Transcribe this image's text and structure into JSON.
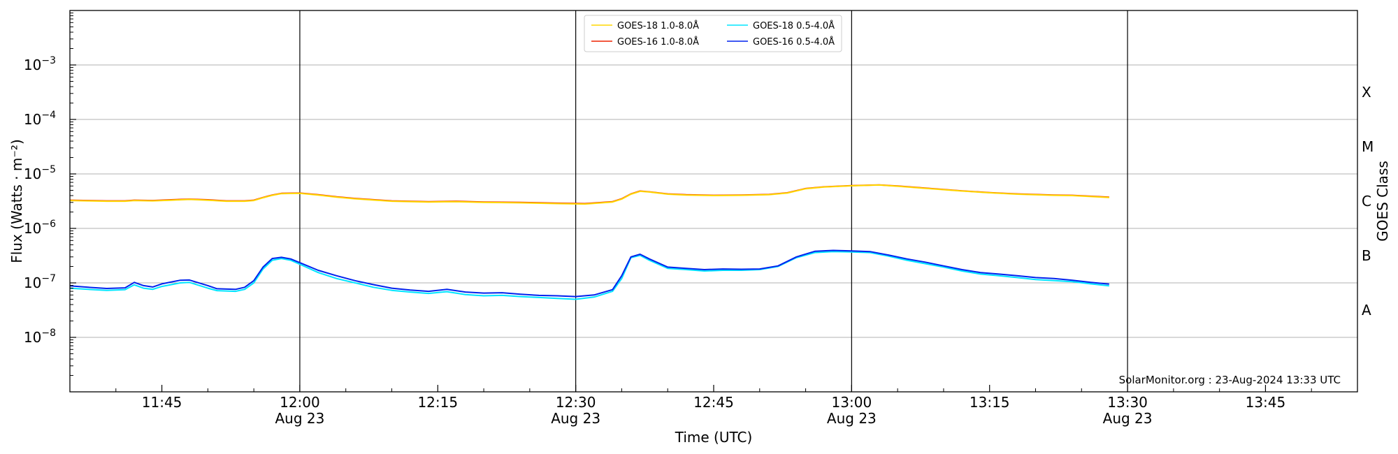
{
  "chart_data": {
    "type": "line",
    "title": "",
    "xlabel": "Time (UTC)",
    "ylabel": "Flux (Watts · m⁻²)",
    "right_label": "GOES Class",
    "y_scale": "log",
    "xlim": [
      "11:35",
      "13:55"
    ],
    "ylim_exponent": [
      -9,
      -2
    ],
    "grid": "horizontal",
    "x_ticks": [
      {
        "time": "11:45",
        "label": "11:45",
        "sub": ""
      },
      {
        "time": "12:00",
        "label": "12:00",
        "sub": "Aug 23"
      },
      {
        "time": "12:15",
        "label": "12:15",
        "sub": ""
      },
      {
        "time": "12:30",
        "label": "12:30",
        "sub": "Aug 23"
      },
      {
        "time": "12:45",
        "label": "12:45",
        "sub": ""
      },
      {
        "time": "13:00",
        "label": "13:00",
        "sub": "Aug 23"
      },
      {
        "time": "13:15",
        "label": "13:15",
        "sub": ""
      },
      {
        "time": "13:30",
        "label": "13:30",
        "sub": "Aug 23"
      },
      {
        "time": "13:45",
        "label": "13:45",
        "sub": ""
      }
    ],
    "day_lines": [
      "12:00",
      "12:30",
      "13:00",
      "13:30"
    ],
    "y_ticks": [
      {
        "exp": -8,
        "label": "10",
        "sup": "−8"
      },
      {
        "exp": -7,
        "label": "10",
        "sup": "−7"
      },
      {
        "exp": -6,
        "label": "10",
        "sup": "−6"
      },
      {
        "exp": -5,
        "label": "10",
        "sup": "−5"
      },
      {
        "exp": -4,
        "label": "10",
        "sup": "−4"
      },
      {
        "exp": -3,
        "label": "10",
        "sup": "−3"
      }
    ],
    "class_labels": [
      {
        "label": "A",
        "exp": -7.5
      },
      {
        "label": "B",
        "exp": -6.5
      },
      {
        "label": "C",
        "exp": -5.5
      },
      {
        "label": "M",
        "exp": -4.5
      },
      {
        "label": "X",
        "exp": -3.5
      }
    ],
    "legend": {
      "placement": "top-center",
      "entries": [
        {
          "name": "GOES-18 1.0-8.0Å",
          "color": "#ffd700"
        },
        {
          "name": "GOES-18 0.5-4.0Å",
          "color": "#00e5ff"
        },
        {
          "name": "GOES-16 1.0-8.0Å",
          "color": "#ee2200"
        },
        {
          "name": "GOES-16 0.5-4.0Å",
          "color": "#0022ee"
        }
      ]
    },
    "annotation": "SolarMonitor.org : 23-Aug-2024 13:33 UTC",
    "series": [
      {
        "name": "GOES-16 1.0-8.0Å",
        "color": "#ee2200",
        "points": [
          [
            "11:35",
            3.3e-06
          ],
          [
            "11:37",
            3.25e-06
          ],
          [
            "11:39",
            3.2e-06
          ],
          [
            "11:41",
            3.2e-06
          ],
          [
            "11:42",
            3.3e-06
          ],
          [
            "11:44",
            3.25e-06
          ],
          [
            "11:46",
            3.35e-06
          ],
          [
            "11:48",
            3.45e-06
          ],
          [
            "11:50",
            3.35e-06
          ],
          [
            "11:52",
            3.2e-06
          ],
          [
            "11:54",
            3.2e-06
          ],
          [
            "11:55",
            3.3e-06
          ],
          [
            "11:56",
            3.7e-06
          ],
          [
            "11:57",
            4.1e-06
          ],
          [
            "11:58",
            4.4e-06
          ],
          [
            "12:00",
            4.45e-06
          ],
          [
            "12:02",
            4.15e-06
          ],
          [
            "12:04",
            3.8e-06
          ],
          [
            "12:06",
            3.55e-06
          ],
          [
            "12:10",
            3.2e-06
          ],
          [
            "12:14",
            3.1e-06
          ],
          [
            "12:17",
            3.15e-06
          ],
          [
            "12:20",
            3.05e-06
          ],
          [
            "12:24",
            3e-06
          ],
          [
            "12:28",
            2.9e-06
          ],
          [
            "12:31",
            2.85e-06
          ],
          [
            "12:34",
            3.1e-06
          ],
          [
            "12:35",
            3.5e-06
          ],
          [
            "12:36",
            4.3e-06
          ],
          [
            "12:37",
            4.85e-06
          ],
          [
            "12:38",
            4.7e-06
          ],
          [
            "12:40",
            4.3e-06
          ],
          [
            "12:42",
            4.15e-06
          ],
          [
            "12:45",
            4.05e-06
          ],
          [
            "12:48",
            4.1e-06
          ],
          [
            "12:51",
            4.2e-06
          ],
          [
            "12:53",
            4.5e-06
          ],
          [
            "12:55",
            5.4e-06
          ],
          [
            "12:57",
            5.8e-06
          ],
          [
            "13:00",
            6.1e-06
          ],
          [
            "13:03",
            6.3e-06
          ],
          [
            "13:05",
            6e-06
          ],
          [
            "13:08",
            5.5e-06
          ],
          [
            "13:12",
            4.9e-06
          ],
          [
            "13:15",
            4.55e-06
          ],
          [
            "13:18",
            4.3e-06
          ],
          [
            "13:22",
            4.1e-06
          ],
          [
            "13:24",
            4.05e-06
          ],
          [
            "13:28",
            3.75e-06
          ]
        ]
      },
      {
        "name": "GOES-18 0.5-4.0Å",
        "color": "#00e5ff",
        "points": [
          [
            "11:35",
            8e-08
          ],
          [
            "11:37",
            7.6e-08
          ],
          [
            "11:39",
            7.3e-08
          ],
          [
            "11:41",
            7.5e-08
          ],
          [
            "11:42",
            9.2e-08
          ],
          [
            "11:43",
            8e-08
          ],
          [
            "11:44",
            7.6e-08
          ],
          [
            "11:45",
            8.6e-08
          ],
          [
            "11:47",
            1e-07
          ],
          [
            "11:48",
            1.02e-07
          ],
          [
            "11:50",
            8e-08
          ],
          [
            "11:51",
            7.2e-08
          ],
          [
            "11:53",
            7e-08
          ],
          [
            "11:54",
            7.6e-08
          ],
          [
            "11:55",
            1e-07
          ],
          [
            "11:56",
            1.8e-07
          ],
          [
            "11:57",
            2.6e-07
          ],
          [
            "11:58",
            2.8e-07
          ],
          [
            "11:59",
            2.6e-07
          ],
          [
            "12:00",
            2.2e-07
          ],
          [
            "12:02",
            1.55e-07
          ],
          [
            "12:04",
            1.2e-07
          ],
          [
            "12:06",
            1e-07
          ],
          [
            "12:08",
            8.3e-08
          ],
          [
            "12:10",
            7.3e-08
          ],
          [
            "12:12",
            6.8e-08
          ],
          [
            "12:14",
            6.4e-08
          ],
          [
            "12:16",
            6.9e-08
          ],
          [
            "12:18",
            6.1e-08
          ],
          [
            "12:20",
            5.8e-08
          ],
          [
            "12:22",
            5.9e-08
          ],
          [
            "12:24",
            5.6e-08
          ],
          [
            "12:26",
            5.4e-08
          ],
          [
            "12:28",
            5.2e-08
          ],
          [
            "12:30",
            5e-08
          ],
          [
            "12:32",
            5.5e-08
          ],
          [
            "12:34",
            7e-08
          ],
          [
            "12:35",
            1.2e-07
          ],
          [
            "12:36",
            2.9e-07
          ],
          [
            "12:37",
            3.2e-07
          ],
          [
            "12:38",
            2.6e-07
          ],
          [
            "12:40",
            1.85e-07
          ],
          [
            "12:42",
            1.75e-07
          ],
          [
            "12:44",
            1.65e-07
          ],
          [
            "12:46",
            1.7e-07
          ],
          [
            "12:48",
            1.7e-07
          ],
          [
            "12:50",
            1.75e-07
          ],
          [
            "12:52",
            2e-07
          ],
          [
            "12:54",
            2.9e-07
          ],
          [
            "12:56",
            3.6e-07
          ],
          [
            "12:58",
            3.75e-07
          ],
          [
            "13:00",
            3.7e-07
          ],
          [
            "13:02",
            3.6e-07
          ],
          [
            "13:04",
            3.1e-07
          ],
          [
            "13:06",
            2.6e-07
          ],
          [
            "13:08",
            2.25e-07
          ],
          [
            "13:10",
            1.95e-07
          ],
          [
            "13:12",
            1.65e-07
          ],
          [
            "13:14",
            1.45e-07
          ],
          [
            "13:16",
            1.35e-07
          ],
          [
            "13:18",
            1.25e-07
          ],
          [
            "13:20",
            1.15e-07
          ],
          [
            "13:22",
            1.1e-07
          ],
          [
            "13:24",
            1.05e-07
          ],
          [
            "13:26",
            9.6e-08
          ],
          [
            "13:28",
            8.8e-08
          ]
        ]
      },
      {
        "name": "GOES-16 0.5-4.0Å",
        "color": "#0022ee",
        "points": [
          [
            "11:35",
            8.8e-08
          ],
          [
            "11:37",
            8.3e-08
          ],
          [
            "11:39",
            7.9e-08
          ],
          [
            "11:41",
            8.1e-08
          ],
          [
            "11:42",
            1.02e-07
          ],
          [
            "11:43",
            8.9e-08
          ],
          [
            "11:44",
            8.4e-08
          ],
          [
            "11:45",
            9.6e-08
          ],
          [
            "11:47",
            1.12e-07
          ],
          [
            "11:48",
            1.13e-07
          ],
          [
            "11:50",
            8.9e-08
          ],
          [
            "11:51",
            7.8e-08
          ],
          [
            "11:53",
            7.6e-08
          ],
          [
            "11:54",
            8.3e-08
          ],
          [
            "11:55",
            1.1e-07
          ],
          [
            "11:56",
            1.95e-07
          ],
          [
            "11:57",
            2.8e-07
          ],
          [
            "11:58",
            2.95e-07
          ],
          [
            "11:59",
            2.75e-07
          ],
          [
            "12:00",
            2.35e-07
          ],
          [
            "12:02",
            1.7e-07
          ],
          [
            "12:04",
            1.35e-07
          ],
          [
            "12:06",
            1.1e-07
          ],
          [
            "12:08",
            9.3e-08
          ],
          [
            "12:10",
            8e-08
          ],
          [
            "12:12",
            7.4e-08
          ],
          [
            "12:14",
            7e-08
          ],
          [
            "12:16",
            7.6e-08
          ],
          [
            "12:18",
            6.8e-08
          ],
          [
            "12:20",
            6.5e-08
          ],
          [
            "12:22",
            6.6e-08
          ],
          [
            "12:24",
            6.2e-08
          ],
          [
            "12:26",
            5.9e-08
          ],
          [
            "12:28",
            5.8e-08
          ],
          [
            "12:30",
            5.6e-08
          ],
          [
            "12:32",
            6e-08
          ],
          [
            "12:34",
            7.5e-08
          ],
          [
            "12:35",
            1.35e-07
          ],
          [
            "12:36",
            3e-07
          ],
          [
            "12:37",
            3.35e-07
          ],
          [
            "12:38",
            2.75e-07
          ],
          [
            "12:40",
            1.95e-07
          ],
          [
            "12:42",
            1.85e-07
          ],
          [
            "12:44",
            1.75e-07
          ],
          [
            "12:46",
            1.8e-07
          ],
          [
            "12:48",
            1.78e-07
          ],
          [
            "12:50",
            1.8e-07
          ],
          [
            "12:52",
            2.05e-07
          ],
          [
            "12:54",
            3e-07
          ],
          [
            "12:56",
            3.8e-07
          ],
          [
            "12:58",
            3.95e-07
          ],
          [
            "13:00",
            3.85e-07
          ],
          [
            "13:02",
            3.75e-07
          ],
          [
            "13:04",
            3.25e-07
          ],
          [
            "13:06",
            2.75e-07
          ],
          [
            "13:08",
            2.4e-07
          ],
          [
            "13:10",
            2.05e-07
          ],
          [
            "13:12",
            1.75e-07
          ],
          [
            "13:14",
            1.55e-07
          ],
          [
            "13:16",
            1.45e-07
          ],
          [
            "13:18",
            1.35e-07
          ],
          [
            "13:20",
            1.25e-07
          ],
          [
            "13:22",
            1.2e-07
          ],
          [
            "13:24",
            1.12e-07
          ],
          [
            "13:26",
            1.02e-07
          ],
          [
            "13:28",
            9.5e-08
          ]
        ]
      },
      {
        "name": "GOES-18 1.0-8.0Å",
        "color": "#ffd700",
        "points": [
          [
            "11:35",
            3.25e-06
          ],
          [
            "11:37",
            3.2e-06
          ],
          [
            "11:39",
            3.15e-06
          ],
          [
            "11:41",
            3.15e-06
          ],
          [
            "11:42",
            3.25e-06
          ],
          [
            "11:44",
            3.2e-06
          ],
          [
            "11:46",
            3.3e-06
          ],
          [
            "11:48",
            3.4e-06
          ],
          [
            "11:50",
            3.3e-06
          ],
          [
            "11:52",
            3.15e-06
          ],
          [
            "11:54",
            3.15e-06
          ],
          [
            "11:55",
            3.25e-06
          ],
          [
            "11:56",
            3.65e-06
          ],
          [
            "11:57",
            4.05e-06
          ],
          [
            "11:58",
            4.35e-06
          ],
          [
            "12:00",
            4.4e-06
          ],
          [
            "12:02",
            4.1e-06
          ],
          [
            "12:04",
            3.75e-06
          ],
          [
            "12:06",
            3.5e-06
          ],
          [
            "12:10",
            3.15e-06
          ],
          [
            "12:14",
            3.05e-06
          ],
          [
            "12:17",
            3.1e-06
          ],
          [
            "12:20",
            3e-06
          ],
          [
            "12:24",
            2.95e-06
          ],
          [
            "12:28",
            2.85e-06
          ],
          [
            "12:31",
            2.8e-06
          ],
          [
            "12:34",
            3.05e-06
          ],
          [
            "12:35",
            3.45e-06
          ],
          [
            "12:36",
            4.25e-06
          ],
          [
            "12:37",
            4.8e-06
          ],
          [
            "12:38",
            4.65e-06
          ],
          [
            "12:40",
            4.25e-06
          ],
          [
            "12:42",
            4.1e-06
          ],
          [
            "12:45",
            4e-06
          ],
          [
            "12:48",
            4.05e-06
          ],
          [
            "12:51",
            4.15e-06
          ],
          [
            "12:53",
            4.45e-06
          ],
          [
            "12:55",
            5.35e-06
          ],
          [
            "12:57",
            5.75e-06
          ],
          [
            "13:00",
            6.05e-06
          ],
          [
            "13:03",
            6.25e-06
          ],
          [
            "13:05",
            5.95e-06
          ],
          [
            "13:08",
            5.45e-06
          ],
          [
            "13:12",
            4.85e-06
          ],
          [
            "13:15",
            4.5e-06
          ],
          [
            "13:18",
            4.25e-06
          ],
          [
            "13:22",
            4.05e-06
          ],
          [
            "13:24",
            4e-06
          ],
          [
            "13:28",
            3.7e-06
          ]
        ]
      }
    ]
  }
}
